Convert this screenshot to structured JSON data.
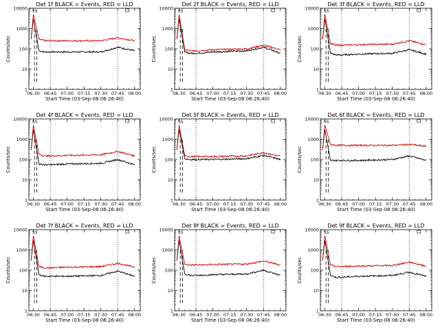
{
  "chart_data": [
    {
      "type": "line",
      "title": "Det 1f BLACK = Events, RED = LLD",
      "xlabel": "Start Time (03-Sep-08 06:26:40)",
      "ylabel": "Counts/sec",
      "marker": "SS",
      "ylim": [
        1,
        10000
      ],
      "y_scale": "log",
      "x_ticks": [
        "06:30",
        "06:45",
        "07:00",
        "07:15",
        "07:30",
        "07:45",
        "08:00"
      ],
      "y_ticks": [
        "1",
        "10",
        "100",
        "1000",
        "10000"
      ],
      "vlines": [
        "06:45",
        "07:45"
      ],
      "series": [
        {
          "color": "#000000",
          "x": [
            "06:30",
            "06:35",
            "06:40",
            "06:45",
            "07:00",
            "07:30",
            "07:45",
            "08:00"
          ],
          "y": [
            3000,
            80,
            70,
            70,
            70,
            70,
            120,
            80
          ]
        },
        {
          "color": "#cc0000",
          "x": [
            "06:30",
            "06:35",
            "06:40",
            "06:45",
            "07:00",
            "07:30",
            "07:45",
            "08:00"
          ],
          "y": [
            5000,
            300,
            250,
            250,
            250,
            250,
            350,
            250
          ]
        }
      ]
    },
    {
      "type": "line",
      "title": "Det 2f BLACK = Events, RED = LLD",
      "xlabel": "Start Time (03-Sep-08 06:26:40)",
      "ylabel": "Counts/sec",
      "marker": "SS",
      "ylim": [
        1,
        10000
      ],
      "y_scale": "log",
      "x_ticks": [
        "06:30",
        "06:45",
        "07:00",
        "07:15",
        "07:30",
        "07:45",
        "08:00"
      ],
      "y_ticks": [
        "1",
        "10",
        "100",
        "1000",
        "10000"
      ],
      "vlines": [
        "06:45",
        "07:45"
      ],
      "series": [
        {
          "color": "#000000",
          "x": [
            "06:30",
            "06:35",
            "06:40",
            "06:45",
            "07:00",
            "07:30",
            "07:45",
            "08:00"
          ],
          "y": [
            3000,
            70,
            60,
            60,
            70,
            80,
            120,
            60
          ]
        },
        {
          "color": "#cc0000",
          "x": [
            "06:30",
            "06:35",
            "06:40",
            "06:45",
            "07:00",
            "07:30",
            "07:45",
            "08:00"
          ],
          "y": [
            5000,
            90,
            80,
            80,
            90,
            100,
            150,
            90
          ]
        }
      ]
    },
    {
      "type": "line",
      "title": "Det 3f BLACK = Events, RED = LLD",
      "xlabel": "Start Time (03-Sep-08 06:26:40)",
      "ylabel": "Counts/sec",
      "marker": "SS",
      "ylim": [
        1,
        10000
      ],
      "y_scale": "log",
      "x_ticks": [
        "06:30",
        "06:45",
        "07:00",
        "07:15",
        "07:30",
        "07:45",
        "08:00"
      ],
      "y_ticks": [
        "1",
        "10",
        "100",
        "1000",
        "10000"
      ],
      "vlines": [
        "06:45",
        "07:45"
      ],
      "series": [
        {
          "color": "#000000",
          "x": [
            "06:30",
            "06:35",
            "06:40",
            "06:45",
            "07:00",
            "07:30",
            "07:45",
            "08:00"
          ],
          "y": [
            3000,
            60,
            50,
            50,
            55,
            60,
            90,
            55
          ]
        },
        {
          "color": "#cc0000",
          "x": [
            "06:30",
            "06:35",
            "06:40",
            "06:45",
            "07:00",
            "07:30",
            "07:45",
            "08:00"
          ],
          "y": [
            5000,
            180,
            150,
            150,
            160,
            170,
            250,
            160
          ]
        }
      ]
    },
    {
      "type": "line",
      "title": "Det 4f BLACK = Events, RED = LLD",
      "xlabel": "Start Time (03-Sep-08 06:26:40)",
      "ylabel": "Counts/sec",
      "marker": "SS",
      "ylim": [
        1,
        10000
      ],
      "y_scale": "log",
      "x_ticks": [
        "06:30",
        "06:45",
        "07:00",
        "07:15",
        "07:30",
        "07:45",
        "08:00"
      ],
      "y_ticks": [
        "1",
        "10",
        "100",
        "1000",
        "10000"
      ],
      "vlines": [
        "06:45",
        "07:45"
      ],
      "series": [
        {
          "color": "#000000",
          "x": [
            "06:30",
            "06:35",
            "06:40",
            "06:45",
            "07:00",
            "07:30",
            "07:45",
            "08:00"
          ],
          "y": [
            3000,
            60,
            55,
            55,
            60,
            65,
            100,
            55
          ]
        },
        {
          "color": "#cc0000",
          "x": [
            "06:30",
            "06:35",
            "06:40",
            "06:45",
            "07:00",
            "07:30",
            "07:45",
            "08:00"
          ],
          "y": [
            5000,
            180,
            150,
            150,
            160,
            170,
            250,
            150
          ]
        }
      ]
    },
    {
      "type": "line",
      "title": "Det 5f BLACK = Events, RED = LLD",
      "xlabel": "Start Time (03-Sep-08 06:26:40)",
      "ylabel": "Counts/sec",
      "marker": "SS",
      "ylim": [
        1,
        10000
      ],
      "y_scale": "log",
      "x_ticks": [
        "06:30",
        "06:45",
        "07:00",
        "07:15",
        "07:30",
        "07:45",
        "08:00"
      ],
      "y_ticks": [
        "1",
        "10",
        "100",
        "1000",
        "10000"
      ],
      "vlines": [
        "06:45",
        "07:45"
      ],
      "series": [
        {
          "color": "#000000",
          "x": [
            "06:30",
            "06:35",
            "06:40",
            "06:45",
            "07:00",
            "07:30",
            "07:45",
            "08:00"
          ],
          "y": [
            3000,
            110,
            100,
            100,
            100,
            110,
            160,
            100
          ]
        },
        {
          "color": "#cc0000",
          "x": [
            "06:30",
            "06:35",
            "06:40",
            "06:45",
            "07:00",
            "07:30",
            "07:45",
            "08:00"
          ],
          "y": [
            5000,
            150,
            140,
            140,
            140,
            150,
            220,
            140
          ]
        }
      ]
    },
    {
      "type": "line",
      "title": "Det 6f BLACK = Events, RED = LLD",
      "xlabel": "Start Time (03-Sep-08 06:26:40)",
      "ylabel": "Counts/sec",
      "marker": "SS",
      "ylim": [
        1,
        10000
      ],
      "y_scale": "log",
      "x_ticks": [
        "06:30",
        "06:45",
        "07:00",
        "07:15",
        "07:30",
        "07:45",
        "08:00"
      ],
      "y_ticks": [
        "1",
        "10",
        "100",
        "1000",
        "10000"
      ],
      "vlines": [
        "06:45",
        "07:45"
      ],
      "series": [
        {
          "color": "#000000",
          "x": [
            "06:30",
            "06:35",
            "06:40",
            "06:45",
            "07:00",
            "07:30",
            "07:45",
            "08:00"
          ],
          "y": [
            3000,
            90,
            90,
            90,
            90,
            100,
            150,
            90
          ]
        },
        {
          "color": "#cc0000",
          "x": [
            "06:30",
            "06:35",
            "06:40",
            "06:45",
            "07:00",
            "07:30",
            "07:45",
            "08:00"
          ],
          "y": [
            5000,
            550,
            500,
            500,
            500,
            500,
            550,
            450
          ]
        }
      ]
    },
    {
      "type": "line",
      "title": "Det 7f BLACK = Events, RED = LLD",
      "xlabel": "Start Time (03-Sep-08 06:26:40)",
      "ylabel": "Counts/sec",
      "marker": "SS",
      "ylim": [
        1,
        10000
      ],
      "y_scale": "log",
      "x_ticks": [
        "06:30",
        "06:45",
        "07:00",
        "07:15",
        "07:30",
        "07:45",
        "08:00"
      ],
      "y_ticks": [
        "1",
        "10",
        "100",
        "1000",
        "10000"
      ],
      "vlines": [
        "06:45",
        "07:45"
      ],
      "series": [
        {
          "color": "#000000",
          "x": [
            "06:30",
            "06:35",
            "06:40",
            "06:45",
            "07:00",
            "07:30",
            "07:45",
            "08:00"
          ],
          "y": [
            3000,
            60,
            50,
            50,
            50,
            55,
            90,
            50
          ]
        },
        {
          "color": "#cc0000",
          "x": [
            "06:30",
            "06:35",
            "06:40",
            "06:45",
            "07:00",
            "07:30",
            "07:45",
            "08:00"
          ],
          "y": [
            5000,
            150,
            130,
            130,
            140,
            150,
            220,
            140
          ]
        }
      ]
    },
    {
      "type": "line",
      "title": "Det 8f BLACK = Events, RED = LLD",
      "xlabel": "Start Time (03-Sep-08 06:26:40)",
      "ylabel": "Counts/sec",
      "marker": "SS",
      "ylim": [
        1,
        10000
      ],
      "y_scale": "log",
      "x_ticks": [
        "06:30",
        "06:45",
        "07:00",
        "07:15",
        "07:30",
        "07:45",
        "08:00"
      ],
      "y_ticks": [
        "1",
        "10",
        "100",
        "1000",
        "10000"
      ],
      "vlines": [
        "06:45",
        "07:45"
      ],
      "series": [
        {
          "color": "#000000",
          "x": [
            "06:30",
            "06:35",
            "06:40",
            "06:45",
            "07:00",
            "07:30",
            "07:45",
            "08:00"
          ],
          "y": [
            3000,
            65,
            55,
            55,
            60,
            65,
            100,
            55
          ]
        },
        {
          "color": "#cc0000",
          "x": [
            "06:30",
            "06:35",
            "06:40",
            "06:45",
            "07:00",
            "07:30",
            "07:45",
            "08:00"
          ],
          "y": [
            5000,
            200,
            180,
            180,
            190,
            200,
            280,
            180
          ]
        }
      ]
    },
    {
      "type": "line",
      "title": "Det 9f BLACK = Events, RED = LLD",
      "xlabel": "Start Time (03-Sep-08 06:26:40)",
      "ylabel": "Counts/sec",
      "marker": "SS",
      "ylim": [
        1,
        10000
      ],
      "y_scale": "log",
      "x_ticks": [
        "06:30",
        "06:45",
        "07:00",
        "07:15",
        "07:30",
        "07:45",
        "08:00"
      ],
      "y_ticks": [
        "1",
        "10",
        "100",
        "1000",
        "10000"
      ],
      "vlines": [
        "06:45",
        "07:45"
      ],
      "series": [
        {
          "color": "#000000",
          "x": [
            "06:30",
            "06:35",
            "06:40",
            "06:45",
            "07:00",
            "07:30",
            "07:45",
            "08:00"
          ],
          "y": [
            3000,
            55,
            45,
            45,
            50,
            55,
            80,
            50
          ]
        },
        {
          "color": "#cc0000",
          "x": [
            "06:30",
            "06:35",
            "06:40",
            "06:45",
            "07:00",
            "07:30",
            "07:45",
            "08:00"
          ],
          "y": [
            5000,
            180,
            150,
            150,
            160,
            170,
            250,
            160
          ]
        }
      ]
    }
  ]
}
